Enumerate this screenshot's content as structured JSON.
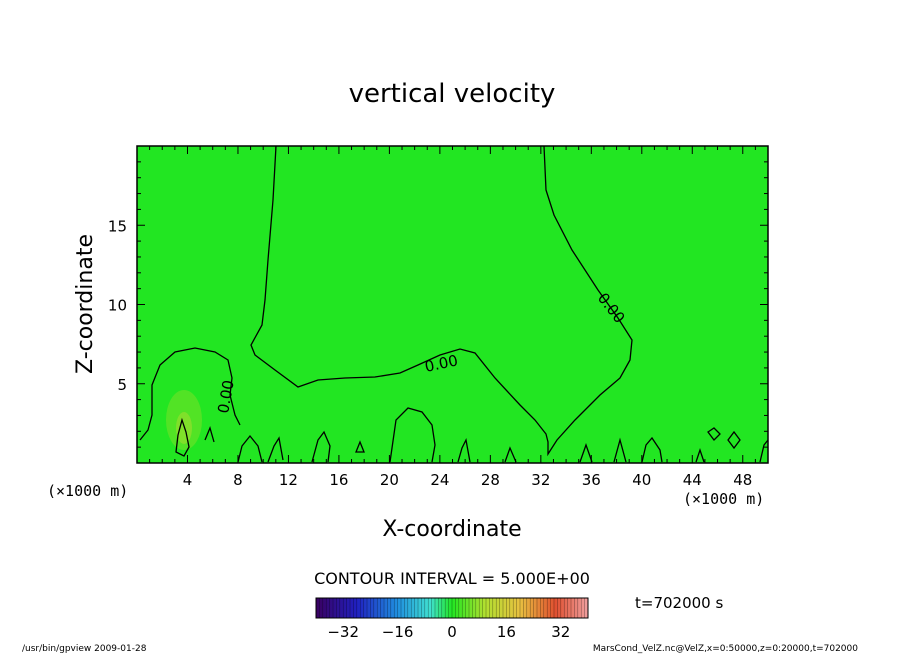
{
  "chart_data": {
    "type": "contour",
    "title": "vertical velocity",
    "xlabel": "X-coordinate",
    "ylabel": "Z-coordinate",
    "x_unit_left": "(×1000 m)",
    "x_unit_right": "(×1000 m)",
    "xlim": [
      0,
      50
    ],
    "ylim": [
      0,
      20
    ],
    "x_ticks": [
      4,
      8,
      12,
      16,
      20,
      24,
      28,
      32,
      36,
      40,
      44,
      48
    ],
    "y_ticks": [
      5,
      10,
      15
    ],
    "contour_labels": [
      "0.00",
      "0.00",
      "0.00"
    ],
    "contour_interval_text": "CONTOUR INTERVAL = 5.000E+00",
    "time_text": "t=702000 s",
    "colorbar": {
      "min": -40,
      "max": 40,
      "ticks": [
        -32,
        -16,
        0,
        16,
        32
      ]
    },
    "fill_color": "#22e622"
  },
  "footer": {
    "left": "/usr/bin/gpview   2009-01-28",
    "right": "MarsCond_VelZ.nc@VelZ,x=0:50000,z=0:20000,t=702000"
  }
}
